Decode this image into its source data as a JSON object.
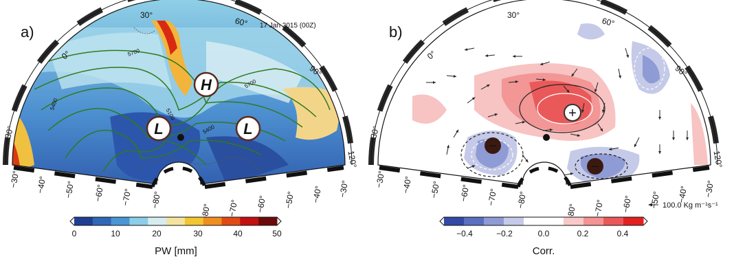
{
  "panel_a": {
    "label": "a)",
    "date": "17 Jan 2015 (00Z)",
    "lon_labels": [
      "30°",
      "60°",
      "0°",
      "90°",
      "−30°",
      "120°"
    ],
    "lat_labels_left": [
      "−30°",
      "−40°",
      "−50°",
      "−60°",
      "−70°",
      "−80°"
    ],
    "lat_labels_right": [
      "−80°",
      "−70°",
      "−60°",
      "−50°",
      "−40°",
      "−30°"
    ],
    "contour_labels": [
      "5700",
      "5700",
      "5400",
      "5100",
      "5400"
    ],
    "markers": [
      "H",
      "L",
      "L"
    ],
    "colorbar": {
      "ticks": [
        "0",
        "10",
        "20",
        "30",
        "40",
        "50"
      ],
      "title": "PW  [mm]",
      "colors": [
        "#1f3f93",
        "#2f68b8",
        "#4a95d4",
        "#8ccde8",
        "#d7ecef",
        "#f4e3a0",
        "#f2c532",
        "#ef8f1f",
        "#e24a14",
        "#c31010",
        "#6a0a0a"
      ]
    }
  },
  "panel_b": {
    "label": "b)",
    "lon_labels": [
      "30°",
      "60°",
      "0°",
      "90°",
      "−30°",
      "120°"
    ],
    "lat_labels_left": [
      "−30°",
      "−40°",
      "−50°",
      "−60°",
      "−70°",
      "−80°"
    ],
    "lat_labels_right": [
      "−80°",
      "−70°",
      "−60°",
      "−50°",
      "−40°",
      "−30°"
    ],
    "markers": [
      "+",
      "−",
      "−"
    ],
    "vector_reference": "100.0 Kg m⁻¹s⁻¹",
    "colorbar": {
      "ticks": [
        "−0.4",
        "−0.2",
        "0.0",
        "0.2",
        "0.4"
      ],
      "title": "Corr.",
      "colors": [
        "#3349a8",
        "#5a6fc0",
        "#8f9bd4",
        "#c5cae8",
        "#ffffff",
        "#ffffff",
        "#f8c9c9",
        "#f39393",
        "#ec5858",
        "#e32020"
      ]
    }
  }
}
